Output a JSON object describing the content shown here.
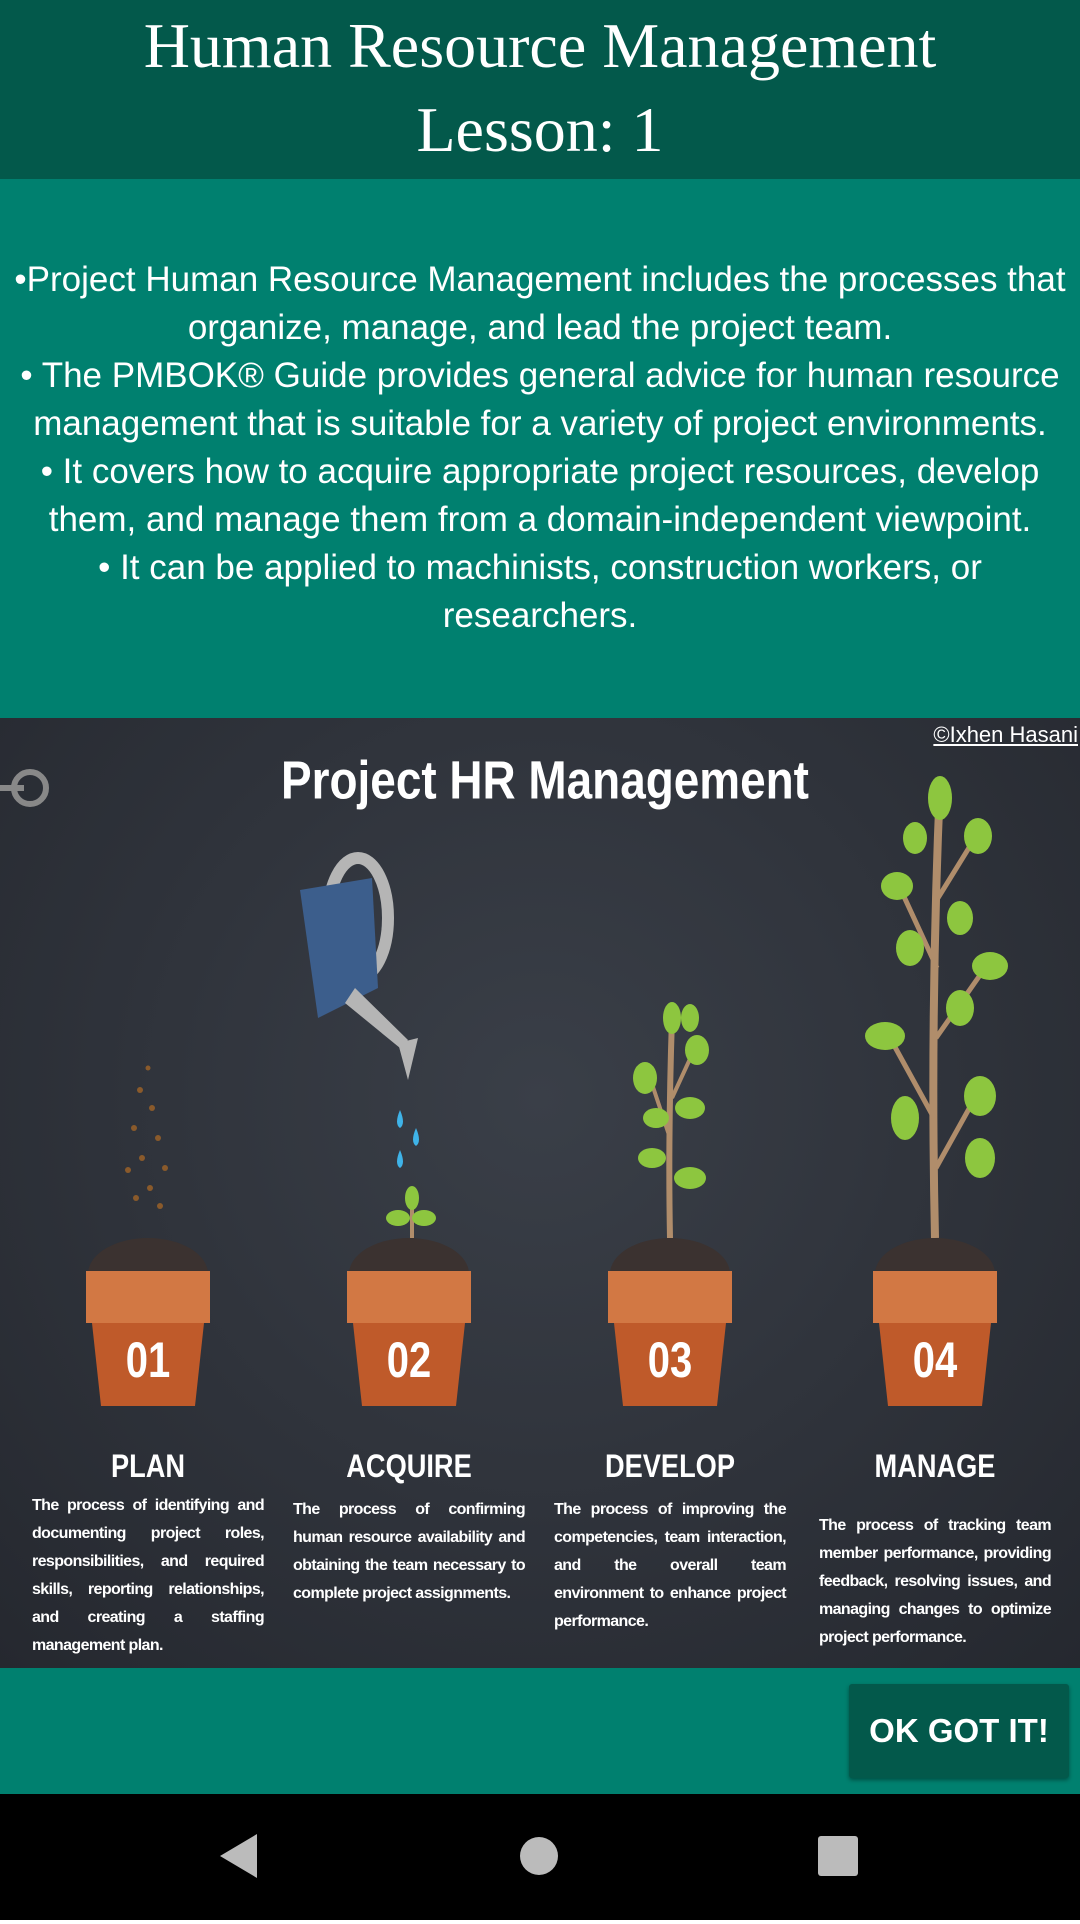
{
  "header": {
    "title_lines": [
      "Human Resource Management",
      "Lesson: 1"
    ]
  },
  "body": {
    "bullets": [
      "•Project Human Resource Management includes the processes that organize, manage, and lead the project team.",
      "• The PMBOK® Guide provides general advice for human resource management that is suitable for a variety of project environments.",
      "• It covers how to acquire appropriate project resources, develop them, and manage them from a domain-independent viewpoint.",
      "• It can be applied to machinists, construction workers, or researchers."
    ]
  },
  "infographic": {
    "title": "Project HR Management",
    "credit": "©Ixhen Hasani",
    "steps": [
      {
        "number": "01",
        "title": "PLAN",
        "description": "The process of identifying and documenting project roles, responsibilities, and required skills, reporting relationships, and creating a staffing management plan."
      },
      {
        "number": "02",
        "title": "ACQUIRE",
        "description": "The process of confirming human resource availability and obtaining the team necessary to complete project assignments."
      },
      {
        "number": "03",
        "title": "DEVELOP",
        "description": "The process of improving the competencies, team interaction, and the overall team environment to enhance project performance."
      },
      {
        "number": "04",
        "title": "MANAGE",
        "description": "The process of tracking team member performance, providing feedback, resolving issues, and managing changes to optimize project performance."
      }
    ]
  },
  "button": {
    "label": "OK GOT IT!"
  }
}
